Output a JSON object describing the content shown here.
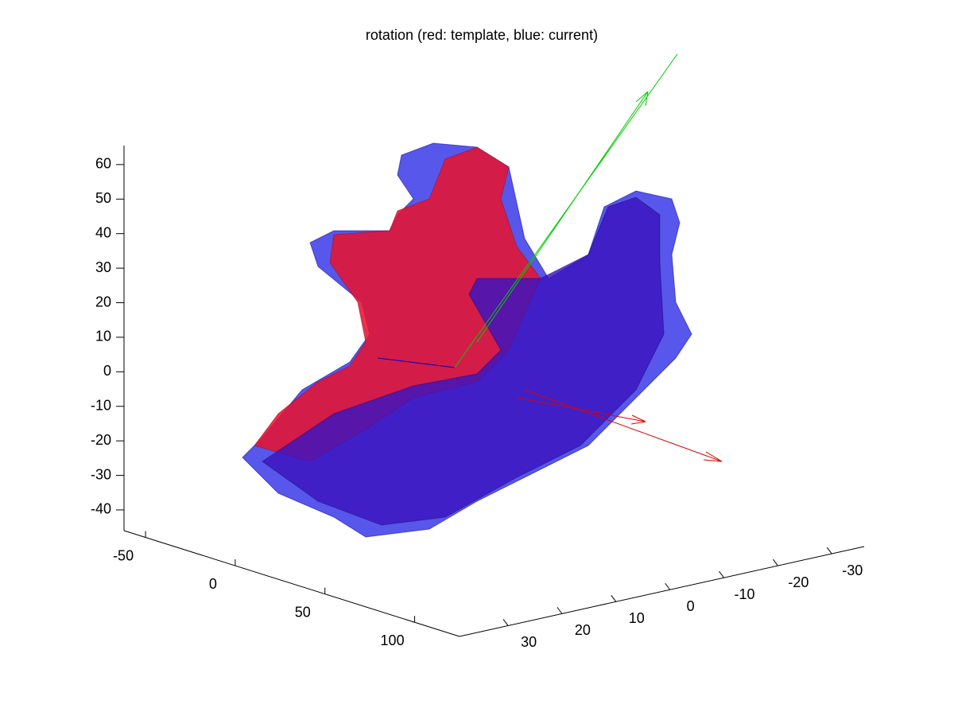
{
  "chart_data": {
    "type": "surface3d",
    "title": "rotation (red: template, blue: current)",
    "xlim": [
      -62,
      125
    ],
    "xticks": [
      -50,
      0,
      50,
      100
    ],
    "ylim": [
      39,
      -36
    ],
    "yticks": [
      30,
      20,
      10,
      0,
      -10,
      -20,
      -30
    ],
    "zlim": [
      -46,
      65.5
    ],
    "zticks": [
      -40,
      -30,
      -20,
      -10,
      0,
      10,
      20,
      30,
      40,
      50,
      60
    ]
  }
}
